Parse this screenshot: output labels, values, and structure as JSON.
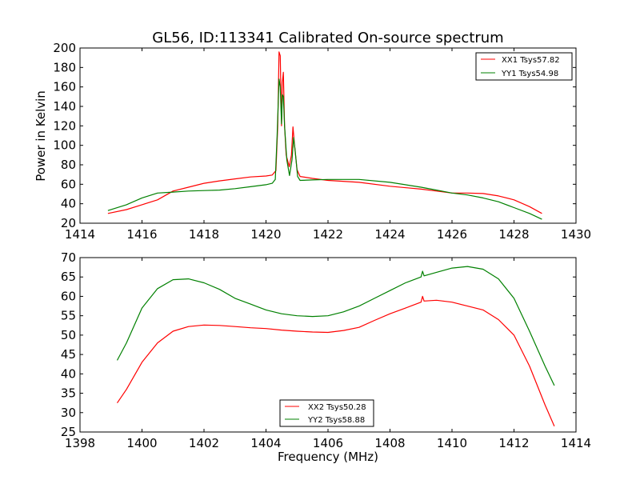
{
  "chart_data": [
    {
      "type": "line",
      "title": "GL56, ID:113341 Calibrated On-source spectrum",
      "xlabel": "",
      "ylabel": "Power in Kelvin",
      "xlim": [
        1414,
        1430
      ],
      "ylim": [
        20,
        200
      ],
      "xticks": [
        1414,
        1416,
        1418,
        1420,
        1422,
        1424,
        1426,
        1428,
        1430
      ],
      "yticks": [
        20,
        40,
        60,
        80,
        100,
        120,
        140,
        160,
        180,
        200
      ],
      "legend_position": "top-right",
      "series": [
        {
          "name": "XX1 Tsys57.82",
          "color": "#ff0000",
          "points": [
            [
              1414.9,
              30
            ],
            [
              1415.5,
              34
            ],
            [
              1416,
              39
            ],
            [
              1416.5,
              44
            ],
            [
              1417,
              53
            ],
            [
              1417.5,
              57
            ],
            [
              1418,
              61
            ],
            [
              1418.5,
              63.5
            ],
            [
              1419,
              65.5
            ],
            [
              1419.5,
              67.5
            ],
            [
              1420,
              68.5
            ],
            [
              1420.2,
              69.5
            ],
            [
              1420.32,
              74
            ],
            [
              1420.38,
              120
            ],
            [
              1420.42,
              196
            ],
            [
              1420.46,
              192
            ],
            [
              1420.5,
              120
            ],
            [
              1420.53,
              165
            ],
            [
              1420.56,
              175
            ],
            [
              1420.6,
              120
            ],
            [
              1420.65,
              90
            ],
            [
              1420.75,
              78
            ],
            [
              1420.82,
              90
            ],
            [
              1420.87,
              119
            ],
            [
              1420.92,
              100
            ],
            [
              1421,
              75
            ],
            [
              1421.1,
              68
            ],
            [
              1421.5,
              66
            ],
            [
              1422,
              64
            ],
            [
              1423,
              62
            ],
            [
              1424,
              58
            ],
            [
              1425,
              55
            ],
            [
              1425.5,
              53
            ],
            [
              1426,
              51
            ],
            [
              1426.5,
              51
            ],
            [
              1427,
              50.5
            ],
            [
              1427.5,
              48
            ],
            [
              1428,
              44
            ],
            [
              1428.5,
              37
            ],
            [
              1428.9,
              30
            ]
          ]
        },
        {
          "name": "YY1 Tsys54.98",
          "color": "#008000",
          "points": [
            [
              1414.9,
              33
            ],
            [
              1415.5,
              39
            ],
            [
              1416,
              46
            ],
            [
              1416.5,
              51
            ],
            [
              1417,
              52
            ],
            [
              1417.5,
              53
            ],
            [
              1418,
              53.5
            ],
            [
              1418.5,
              54
            ],
            [
              1419,
              55.5
            ],
            [
              1419.5,
              57.5
            ],
            [
              1420,
              59.5
            ],
            [
              1420.2,
              61
            ],
            [
              1420.3,
              65
            ],
            [
              1420.36,
              110
            ],
            [
              1420.42,
              168
            ],
            [
              1420.46,
              160
            ],
            [
              1420.5,
              122
            ],
            [
              1420.53,
              152
            ],
            [
              1420.56,
              150
            ],
            [
              1420.6,
              120
            ],
            [
              1420.67,
              85
            ],
            [
              1420.76,
              69
            ],
            [
              1420.84,
              85
            ],
            [
              1420.89,
              108
            ],
            [
              1420.94,
              95
            ],
            [
              1421.02,
              68
            ],
            [
              1421.1,
              64
            ],
            [
              1421.5,
              64.5
            ],
            [
              1422,
              65
            ],
            [
              1423,
              65
            ],
            [
              1424,
              62
            ],
            [
              1425,
              57
            ],
            [
              1425.5,
              54
            ],
            [
              1426,
              51
            ],
            [
              1426.5,
              49
            ],
            [
              1427,
              46
            ],
            [
              1427.5,
              42
            ],
            [
              1428,
              36
            ],
            [
              1428.5,
              30
            ],
            [
              1428.9,
              24
            ]
          ]
        }
      ]
    },
    {
      "type": "line",
      "title": "",
      "xlabel": "Frequency (MHz)",
      "ylabel": "",
      "xlim": [
        1398,
        1414
      ],
      "ylim": [
        25,
        70
      ],
      "xticks": [
        1398,
        1400,
        1402,
        1404,
        1406,
        1408,
        1410,
        1412,
        1414
      ],
      "yticks": [
        25,
        30,
        35,
        40,
        45,
        50,
        55,
        60,
        65,
        70
      ],
      "legend_position": "bottom-center",
      "series": [
        {
          "name": "XX2 Tsys50.28",
          "color": "#ff0000",
          "points": [
            [
              1399.2,
              32.5
            ],
            [
              1399.5,
              36
            ],
            [
              1400,
              43
            ],
            [
              1400.5,
              48
            ],
            [
              1401,
              51
            ],
            [
              1401.5,
              52.2
            ],
            [
              1402,
              52.6
            ],
            [
              1402.5,
              52.5
            ],
            [
              1403,
              52.2
            ],
            [
              1403.5,
              51.9
            ],
            [
              1404,
              51.7
            ],
            [
              1404.5,
              51.3
            ],
            [
              1405,
              51
            ],
            [
              1405.5,
              50.8
            ],
            [
              1406,
              50.7
            ],
            [
              1406.5,
              51.2
            ],
            [
              1407,
              52
            ],
            [
              1407.5,
              53.8
            ],
            [
              1408,
              55.5
            ],
            [
              1408.5,
              57
            ],
            [
              1409,
              58.5
            ],
            [
              1409.05,
              60
            ],
            [
              1409.1,
              58.8
            ],
            [
              1409.5,
              59
            ],
            [
              1410,
              58.5
            ],
            [
              1410.5,
              57.5
            ],
            [
              1411,
              56.5
            ],
            [
              1411.5,
              54
            ],
            [
              1412,
              50
            ],
            [
              1412.5,
              42
            ],
            [
              1413,
              32
            ],
            [
              1413.3,
              26.5
            ]
          ]
        },
        {
          "name": "YY2 Tsys58.88",
          "color": "#008000",
          "points": [
            [
              1399.2,
              43.5
            ],
            [
              1399.5,
              48
            ],
            [
              1400,
              57
            ],
            [
              1400.5,
              62
            ],
            [
              1401,
              64.3
            ],
            [
              1401.5,
              64.5
            ],
            [
              1402,
              63.5
            ],
            [
              1402.5,
              61.8
            ],
            [
              1403,
              59.5
            ],
            [
              1403.5,
              58
            ],
            [
              1404,
              56.5
            ],
            [
              1404.5,
              55.5
            ],
            [
              1405,
              55
            ],
            [
              1405.5,
              54.8
            ],
            [
              1406,
              55
            ],
            [
              1406.5,
              56
            ],
            [
              1407,
              57.5
            ],
            [
              1407.5,
              59.5
            ],
            [
              1408,
              61.5
            ],
            [
              1408.5,
              63.5
            ],
            [
              1409,
              65
            ],
            [
              1409.05,
              66.5
            ],
            [
              1409.1,
              65.3
            ],
            [
              1409.5,
              66.2
            ],
            [
              1410,
              67.3
            ],
            [
              1410.5,
              67.7
            ],
            [
              1411,
              67
            ],
            [
              1411.5,
              64.5
            ],
            [
              1412,
              59.5
            ],
            [
              1412.5,
              51
            ],
            [
              1413,
              42
            ],
            [
              1413.3,
              37
            ]
          ]
        }
      ]
    }
  ]
}
